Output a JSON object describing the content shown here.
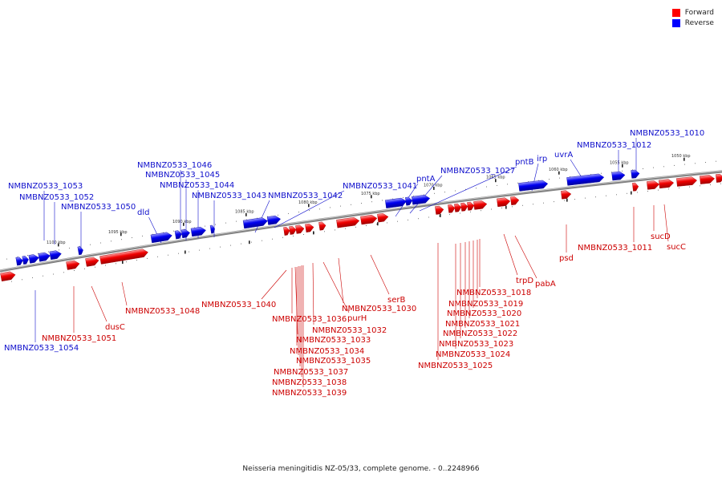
{
  "legend": {
    "forward_label": "Forward",
    "reverse_label": "Reverse",
    "forward_color": "#ff0000",
    "reverse_color": "#0000ff"
  },
  "caption": "Neisseria meningitidis NZ-05/33, complete genome. - 0..2248966",
  "backbone_color": "#808080",
  "scale_ticks": [
    "1100 kbp",
    "1095 kbp",
    "1090 kbp",
    "1085 kbp",
    "1080 kbp",
    "1075 kbp",
    "1070 kbp",
    "1065 kbp",
    "1060 kbp",
    "1055 kbp",
    "1050 kbp"
  ],
  "reverse_labels": [
    "NMBNZ0533_1053",
    "NMBNZ0533_1052",
    "NMBNZ0533_1050",
    "dld",
    "NMBNZ0533_1046",
    "NMBNZ0533_1045",
    "NMBNZ0533_1044",
    "NMBNZ0533_1043",
    "NMBNZ0533_1042",
    "NMBNZ0533_1041",
    "pntA",
    "NMBNZ0533_1027",
    "pntB",
    "irp",
    "uvrA",
    "NMBNZ0533_1012",
    "NMBNZ0533_1010",
    "NMBNZ0533_1054"
  ],
  "forward_labels": [
    "NMBNZ0533_1040",
    "NMBNZ0533_1036",
    "NMBNZ0533_1033",
    "NMBNZ0533_1034",
    "NMBNZ0533_1035",
    "NMBNZ0533_1037",
    "NMBNZ0533_1038",
    "NMBNZ0533_1039",
    "NMBNZ0533_1032",
    "purH",
    "NMBNZ0533_1030",
    "serB",
    "NMBNZ0533_1048",
    "dusC",
    "NMBNZ0533_1051",
    "NMBNZ0533_1018",
    "NMBNZ0533_1019",
    "NMBNZ0533_1020",
    "NMBNZ0533_1021",
    "NMBNZ0533_1022",
    "NMBNZ0533_1023",
    "NMBNZ0533_1024",
    "NMBNZ0533_1025",
    "trpD",
    "pabA",
    "psd",
    "NMBNZ0533_1011",
    "sucD",
    "sucC"
  ]
}
